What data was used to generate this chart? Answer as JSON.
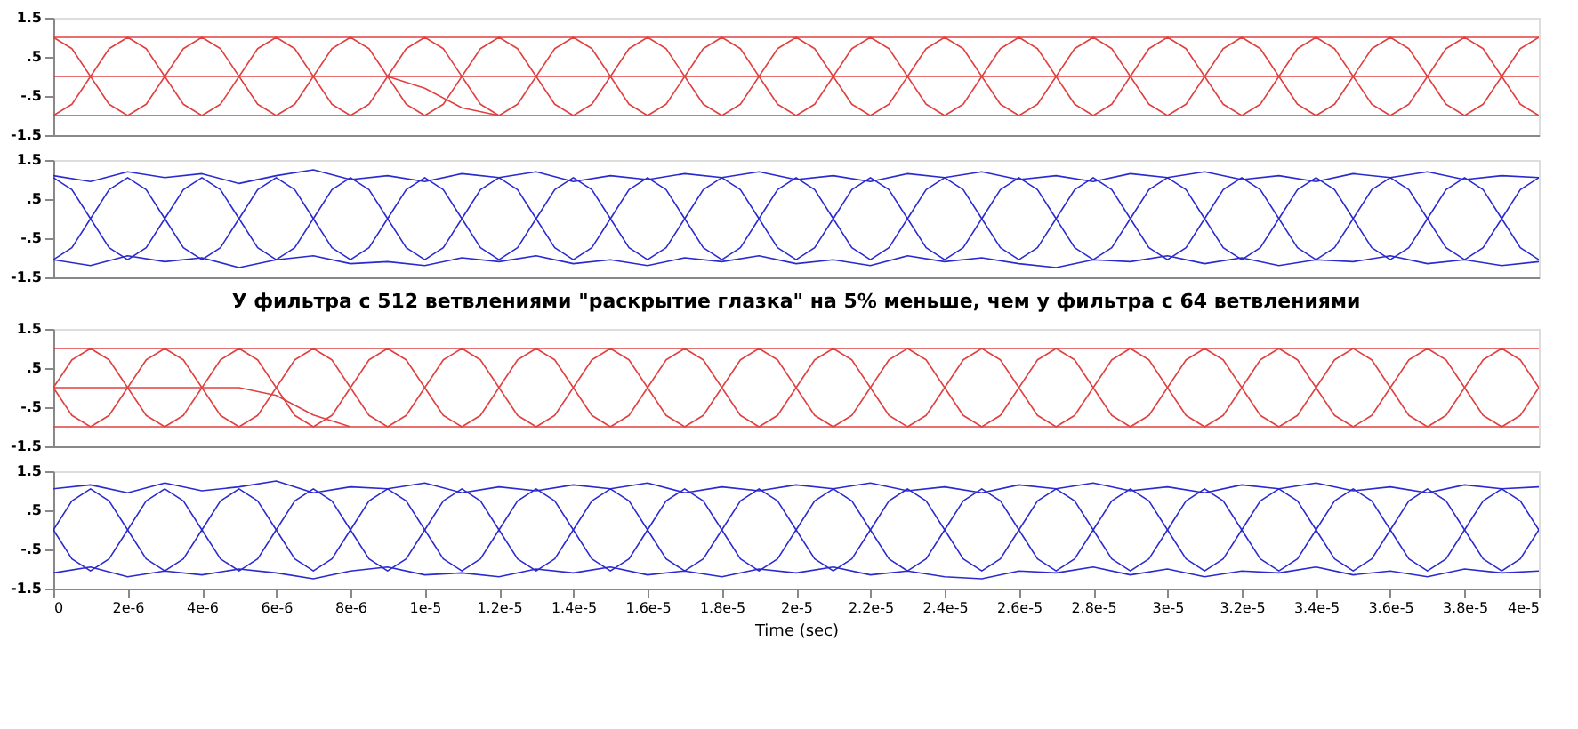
{
  "chart_data": [
    {
      "type": "line",
      "xlim": [
        0,
        4e-05
      ],
      "ylim": [
        -1.5,
        1.5
      ],
      "tick_labels": "y",
      "yticks": [
        {
          "value": 1.5,
          "label": "1.5"
        },
        {
          "value": 0.5,
          "label": ".5"
        },
        {
          "value": -0.5,
          "label": "-.5"
        },
        {
          "value": -1.5,
          "label": "-1.5"
        }
      ],
      "x": [
        0,
        5e-07,
        1e-06,
        1.5e-06,
        2e-06,
        2.5e-06,
        3e-06,
        3.5e-06,
        4e-06,
        4.5e-06,
        5e-06,
        5.5e-06,
        6e-06,
        6.5e-06,
        7e-06,
        7.5e-06,
        8e-06,
        8.5e-06,
        9e-06,
        9.5e-06,
        1e-05,
        1.05e-05,
        1.1e-05,
        1.15e-05,
        1.2e-05,
        1.25e-05,
        1.3e-05,
        1.35e-05,
        1.4e-05,
        1.45e-05,
        1.5e-05,
        1.55e-05,
        1.6e-05,
        1.65e-05,
        1.7e-05,
        1.75e-05,
        1.8e-05,
        1.85e-05,
        1.9e-05,
        1.95e-05,
        2e-05,
        2.05e-05,
        2.1e-05,
        2.15e-05,
        2.2e-05,
        2.25e-05,
        2.3e-05,
        2.35e-05,
        2.4e-05,
        2.45e-05,
        2.5e-05,
        2.55e-05,
        2.6e-05,
        2.65e-05,
        2.7e-05,
        2.75e-05,
        2.8e-05,
        2.85e-05,
        2.9e-05,
        2.95e-05,
        3e-05,
        3.05e-05,
        3.1e-05,
        3.15e-05,
        3.2e-05,
        3.25e-05,
        3.3e-05,
        3.35e-05,
        3.4e-05,
        3.45e-05,
        3.5e-05,
        3.55e-05,
        3.6e-05,
        3.65e-05,
        3.7e-05,
        3.75e-05,
        3.8e-05,
        3.85e-05,
        3.9e-05,
        3.95e-05,
        4e-05
      ],
      "series": [
        {
          "color": "#e04040",
          "values": [
            -1,
            -0.71,
            0,
            0.71,
            1,
            0.71,
            0,
            -0.71,
            -1,
            -0.71,
            0,
            0.71,
            1,
            0.71,
            0,
            -0.71,
            -1,
            -0.71,
            0,
            0.71,
            1,
            0.71,
            0,
            -0.71,
            -1,
            -0.71,
            0,
            0.71,
            1,
            0.71,
            0,
            -0.71,
            -1,
            -0.71,
            0,
            0.71,
            1,
            0.71,
            0,
            -0.71,
            -1,
            -0.71,
            0,
            0.71,
            1,
            0.71,
            0,
            -0.71,
            -1,
            -0.71,
            0,
            0.71,
            1,
            0.71,
            0,
            -0.71,
            -1,
            -0.71,
            0,
            0.71,
            1,
            0.71,
            0,
            -0.71,
            -1,
            -0.71,
            0,
            0.71,
            1,
            0.71,
            0,
            -0.71,
            -1,
            -0.71,
            0,
            0.71,
            1,
            0.71,
            0,
            -0.71,
            -1
          ]
        },
        {
          "color": "#e04040",
          "values": [
            1,
            0.71,
            0,
            -0.71,
            -1,
            -0.71,
            0,
            0.71,
            1,
            0.71,
            0,
            -0.71,
            -1,
            -0.71,
            0,
            0.71,
            1,
            0.71,
            0,
            -0.71,
            -1,
            -0.71,
            0,
            0.71,
            1,
            0.71,
            0,
            -0.71,
            -1,
            -0.71,
            0,
            0.71,
            1,
            0.71,
            0,
            -0.71,
            -1,
            -0.71,
            0,
            0.71,
            1,
            0.71,
            0,
            -0.71,
            -1,
            -0.71,
            0,
            0.71,
            1,
            0.71,
            0,
            -0.71,
            -1,
            -0.71,
            0,
            0.71,
            1,
            0.71,
            0,
            -0.71,
            -1,
            -0.71,
            0,
            0.71,
            1,
            0.71,
            0,
            -0.71,
            -1,
            -0.71,
            0,
            0.71,
            1,
            0.71,
            0,
            -0.71,
            -1,
            -0.71,
            0,
            0.71,
            1
          ]
        },
        {
          "color": "#e04040",
          "x": [
            0,
            4e-05
          ],
          "values": [
            1,
            1
          ]
        },
        {
          "color": "#e04040",
          "x": [
            0,
            4e-05
          ],
          "values": [
            0,
            0
          ]
        },
        {
          "color": "#e04040",
          "x": [
            0,
            4e-05
          ],
          "values": [
            -1,
            -1
          ]
        },
        {
          "color": "#e04040",
          "x": [
            9e-06,
            1e-05,
            1.1e-05,
            1.2e-05
          ],
          "values": [
            0,
            -0.3,
            -0.8,
            -1
          ]
        }
      ]
    },
    {
      "type": "line",
      "xlim": [
        0,
        4e-05
      ],
      "ylim": [
        -1.5,
        1.5
      ],
      "tick_labels": "y",
      "yticks": [
        {
          "value": 1.5,
          "label": "1.5"
        },
        {
          "value": 0.5,
          "label": ".5"
        },
        {
          "value": -0.5,
          "label": "-.5"
        },
        {
          "value": -1.5,
          "label": "-1.5"
        }
      ],
      "annotations": [
        "У фильтра с 512 ветвлениями \"раскрытие глазка\" на 5% меньше, чем у фильтра с 64 ветвлениями"
      ],
      "x": [
        0,
        5e-07,
        1e-06,
        1.5e-06,
        2e-06,
        2.5e-06,
        3e-06,
        3.5e-06,
        4e-06,
        4.5e-06,
        5e-06,
        5.5e-06,
        6e-06,
        6.5e-06,
        7e-06,
        7.5e-06,
        8e-06,
        8.5e-06,
        9e-06,
        9.5e-06,
        1e-05,
        1.05e-05,
        1.1e-05,
        1.15e-05,
        1.2e-05,
        1.25e-05,
        1.3e-05,
        1.35e-05,
        1.4e-05,
        1.45e-05,
        1.5e-05,
        1.55e-05,
        1.6e-05,
        1.65e-05,
        1.7e-05,
        1.75e-05,
        1.8e-05,
        1.85e-05,
        1.9e-05,
        1.95e-05,
        2e-05,
        2.05e-05,
        2.1e-05,
        2.15e-05,
        2.2e-05,
        2.25e-05,
        2.3e-05,
        2.35e-05,
        2.4e-05,
        2.45e-05,
        2.5e-05,
        2.55e-05,
        2.6e-05,
        2.65e-05,
        2.7e-05,
        2.75e-05,
        2.8e-05,
        2.85e-05,
        2.9e-05,
        2.95e-05,
        3e-05,
        3.05e-05,
        3.1e-05,
        3.15e-05,
        3.2e-05,
        3.25e-05,
        3.3e-05,
        3.35e-05,
        3.4e-05,
        3.45e-05,
        3.5e-05,
        3.55e-05,
        3.6e-05,
        3.65e-05,
        3.7e-05,
        3.75e-05,
        3.8e-05,
        3.85e-05,
        3.9e-05,
        3.95e-05,
        4e-05
      ],
      "series": [
        {
          "color": "#2a2ad0",
          "values": [
            -1.05,
            -0.74,
            0,
            0.74,
            1.05,
            0.74,
            0,
            -0.74,
            -1.05,
            -0.74,
            0,
            0.74,
            1.05,
            0.74,
            0,
            -0.74,
            -1.05,
            -0.74,
            0,
            0.74,
            1.05,
            0.74,
            0,
            -0.74,
            -1.05,
            -0.74,
            0,
            0.74,
            1.05,
            0.74,
            0,
            -0.74,
            -1.05,
            -0.74,
            0,
            0.74,
            1.05,
            0.74,
            0,
            -0.74,
            -1.05,
            -0.74,
            0,
            0.74,
            1.05,
            0.74,
            0,
            -0.74,
            -1.05,
            -0.74,
            0,
            0.74,
            1.05,
            0.74,
            0,
            -0.74,
            -1.05,
            -0.74,
            0,
            0.74,
            1.05,
            0.74,
            0,
            -0.74,
            -1.05,
            -0.74,
            0,
            0.74,
            1.05,
            0.74,
            0,
            -0.74,
            -1.05,
            -0.74,
            0,
            0.74,
            1.05,
            0.74,
            0,
            -0.74,
            -1.05
          ]
        },
        {
          "color": "#2a2ad0",
          "values": [
            1.05,
            0.74,
            0,
            -0.74,
            -1.05,
            -0.74,
            0,
            0.74,
            1.05,
            0.74,
            0,
            -0.74,
            -1.05,
            -0.74,
            0,
            0.74,
            1.05,
            0.74,
            0,
            -0.74,
            -1.05,
            -0.74,
            0,
            0.74,
            1.05,
            0.74,
            0,
            -0.74,
            -1.05,
            -0.74,
            0,
            0.74,
            1.05,
            0.74,
            0,
            -0.74,
            -1.05,
            -0.74,
            0,
            0.74,
            1.05,
            0.74,
            0,
            -0.74,
            -1.05,
            -0.74,
            0,
            0.74,
            1.05,
            0.74,
            0,
            -0.74,
            -1.05,
            -0.74,
            0,
            0.74,
            1.05,
            0.74,
            0,
            -0.74,
            -1.05,
            -0.74,
            0,
            0.74,
            1.05,
            0.74,
            0,
            -0.74,
            -1.05,
            -0.74,
            0,
            0.74,
            1.05,
            0.74,
            0,
            -0.74,
            -1.05,
            -0.74,
            0,
            0.74,
            1.05
          ]
        },
        {
          "color": "#2a2ad0",
          "x": [
            0,
            1e-06,
            2e-06,
            3e-06,
            4e-06,
            5e-06,
            6e-06,
            7e-06,
            8e-06,
            9e-06,
            1e-05,
            1.1e-05,
            1.2e-05,
            1.3e-05,
            1.4e-05,
            1.5e-05,
            1.6e-05,
            1.7e-05,
            1.8e-05,
            1.9e-05,
            2e-05,
            2.1e-05,
            2.2e-05,
            2.3e-05,
            2.4e-05,
            2.5e-05,
            2.6e-05,
            2.7e-05,
            2.8e-05,
            2.9e-05,
            3e-05,
            3.1e-05,
            3.2e-05,
            3.3e-05,
            3.4e-05,
            3.5e-05,
            3.6e-05,
            3.7e-05,
            3.8e-05,
            3.9e-05,
            4e-05
          ],
          "values": [
            1.1,
            0.95,
            1.2,
            1.05,
            1.15,
            0.9,
            1.1,
            1.25,
            1.0,
            1.1,
            0.95,
            1.15,
            1.05,
            1.2,
            0.95,
            1.1,
            1.0,
            1.15,
            1.05,
            1.2,
            1.0,
            1.1,
            0.95,
            1.15,
            1.05,
            1.2,
            1.0,
            1.1,
            0.95,
            1.15,
            1.05,
            1.2,
            1.0,
            1.1,
            0.95,
            1.15,
            1.05,
            1.2,
            1.0,
            1.1,
            1.05
          ]
        },
        {
          "color": "#2a2ad0",
          "x": [
            0,
            1e-06,
            2e-06,
            3e-06,
            4e-06,
            5e-06,
            6e-06,
            7e-06,
            8e-06,
            9e-06,
            1e-05,
            1.1e-05,
            1.2e-05,
            1.3e-05,
            1.4e-05,
            1.5e-05,
            1.6e-05,
            1.7e-05,
            1.8e-05,
            1.9e-05,
            2e-05,
            2.1e-05,
            2.2e-05,
            2.3e-05,
            2.4e-05,
            2.5e-05,
            2.6e-05,
            2.7e-05,
            2.8e-05,
            2.9e-05,
            3e-05,
            3.1e-05,
            3.2e-05,
            3.3e-05,
            3.4e-05,
            3.5e-05,
            3.6e-05,
            3.7e-05,
            3.8e-05,
            3.9e-05,
            4e-05
          ],
          "values": [
            -1.05,
            -1.2,
            -0.95,
            -1.1,
            -1.0,
            -1.25,
            -1.05,
            -0.95,
            -1.15,
            -1.1,
            -1.2,
            -1.0,
            -1.1,
            -0.95,
            -1.15,
            -1.05,
            -1.2,
            -1.0,
            -1.1,
            -0.95,
            -1.15,
            -1.05,
            -1.2,
            -0.95,
            -1.1,
            -1.0,
            -1.15,
            -1.25,
            -1.05,
            -1.1,
            -0.95,
            -1.15,
            -1.0,
            -1.2,
            -1.05,
            -1.1,
            -0.95,
            -1.15,
            -1.05,
            -1.2,
            -1.1
          ]
        }
      ]
    },
    {
      "type": "line",
      "xlim": [
        0,
        4e-05
      ],
      "ylim": [
        -1.5,
        1.5
      ],
      "tick_labels": "y",
      "yticks": [
        {
          "value": 1.5,
          "label": "1.5"
        },
        {
          "value": 0.5,
          "label": ".5"
        },
        {
          "value": -0.5,
          "label": "-.5"
        },
        {
          "value": -1.5,
          "label": "-1.5"
        }
      ],
      "x": [
        0,
        5e-07,
        1e-06,
        1.5e-06,
        2e-06,
        2.5e-06,
        3e-06,
        3.5e-06,
        4e-06,
        4.5e-06,
        5e-06,
        5.5e-06,
        6e-06,
        6.5e-06,
        7e-06,
        7.5e-06,
        8e-06,
        8.5e-06,
        9e-06,
        9.5e-06,
        1e-05,
        1.05e-05,
        1.1e-05,
        1.15e-05,
        1.2e-05,
        1.25e-05,
        1.3e-05,
        1.35e-05,
        1.4e-05,
        1.45e-05,
        1.5e-05,
        1.55e-05,
        1.6e-05,
        1.65e-05,
        1.7e-05,
        1.75e-05,
        1.8e-05,
        1.85e-05,
        1.9e-05,
        1.95e-05,
        2e-05,
        2.05e-05,
        2.1e-05,
        2.15e-05,
        2.2e-05,
        2.25e-05,
        2.3e-05,
        2.35e-05,
        2.4e-05,
        2.45e-05,
        2.5e-05,
        2.55e-05,
        2.6e-05,
        2.65e-05,
        2.7e-05,
        2.75e-05,
        2.8e-05,
        2.85e-05,
        2.9e-05,
        2.95e-05,
        3e-05,
        3.05e-05,
        3.1e-05,
        3.15e-05,
        3.2e-05,
        3.25e-05,
        3.3e-05,
        3.35e-05,
        3.4e-05,
        3.45e-05,
        3.5e-05,
        3.55e-05,
        3.6e-05,
        3.65e-05,
        3.7e-05,
        3.75e-05,
        3.8e-05,
        3.85e-05,
        3.9e-05,
        3.95e-05,
        4e-05
      ],
      "series": [
        {
          "color": "#e04040",
          "values": [
            0,
            0.71,
            1,
            0.71,
            0,
            -0.71,
            -1,
            -0.71,
            0,
            0.71,
            1,
            0.71,
            0,
            -0.71,
            -1,
            -0.71,
            0,
            0.71,
            1,
            0.71,
            0,
            -0.71,
            -1,
            -0.71,
            0,
            0.71,
            1,
            0.71,
            0,
            -0.71,
            -1,
            -0.71,
            0,
            0.71,
            1,
            0.71,
            0,
            -0.71,
            -1,
            -0.71,
            0,
            0.71,
            1,
            0.71,
            0,
            -0.71,
            -1,
            -0.71,
            0,
            0.71,
            1,
            0.71,
            0,
            -0.71,
            -1,
            -0.71,
            0,
            0.71,
            1,
            0.71,
            0,
            -0.71,
            -1,
            -0.71,
            0,
            0.71,
            1,
            0.71,
            0,
            -0.71,
            -1,
            -0.71,
            0,
            0.71,
            1,
            0.71,
            0,
            -0.71,
            -1,
            -0.71,
            0
          ]
        },
        {
          "color": "#e04040",
          "values": [
            0,
            -0.71,
            -1,
            -0.71,
            0,
            0.71,
            1,
            0.71,
            0,
            -0.71,
            -1,
            -0.71,
            0,
            0.71,
            1,
            0.71,
            0,
            -0.71,
            -1,
            -0.71,
            0,
            0.71,
            1,
            0.71,
            0,
            -0.71,
            -1,
            -0.71,
            0,
            0.71,
            1,
            0.71,
            0,
            -0.71,
            -1,
            -0.71,
            0,
            0.71,
            1,
            0.71,
            0,
            -0.71,
            -1,
            -0.71,
            0,
            0.71,
            1,
            0.71,
            0,
            -0.71,
            -1,
            -0.71,
            0,
            0.71,
            1,
            0.71,
            0,
            -0.71,
            -1,
            -0.71,
            0,
            0.71,
            1,
            0.71,
            0,
            -0.71,
            -1,
            -0.71,
            0,
            0.71,
            1,
            0.71,
            0,
            -0.71,
            -1,
            -0.71,
            0,
            0.71,
            1,
            0.71,
            0
          ]
        },
        {
          "color": "#e04040",
          "x": [
            0,
            4e-05
          ],
          "values": [
            1,
            1
          ]
        },
        {
          "color": "#e04040",
          "x": [
            0,
            4e-05
          ],
          "values": [
            -1,
            -1
          ]
        },
        {
          "color": "#e04040",
          "x": [
            0,
            5e-06,
            6e-06,
            7e-06,
            8e-06
          ],
          "values": [
            0,
            0,
            -0.2,
            -0.7,
            -1
          ]
        }
      ]
    },
    {
      "type": "line",
      "xlim": [
        0,
        4e-05
      ],
      "ylim": [
        -1.5,
        1.5
      ],
      "xlabel": "Time (sec)",
      "yticks": [
        {
          "value": 1.5,
          "label": "1.5"
        },
        {
          "value": 0.5,
          "label": ".5"
        },
        {
          "value": -0.5,
          "label": "-.5"
        },
        {
          "value": -1.5,
          "label": "-1.5"
        }
      ],
      "xticks": [
        {
          "value": 0,
          "label": "0"
        },
        {
          "value": 2e-06,
          "label": "2e-6"
        },
        {
          "value": 4e-06,
          "label": "4e-6"
        },
        {
          "value": 6e-06,
          "label": "6e-6"
        },
        {
          "value": 8e-06,
          "label": "8e-6"
        },
        {
          "value": 1e-05,
          "label": "1e-5"
        },
        {
          "value": 1.2e-05,
          "label": "1.2e-5"
        },
        {
          "value": 1.4e-05,
          "label": "1.4e-5"
        },
        {
          "value": 1.6e-05,
          "label": "1.6e-5"
        },
        {
          "value": 1.8e-05,
          "label": "1.8e-5"
        },
        {
          "value": 2e-05,
          "label": "2e-5"
        },
        {
          "value": 2.2e-05,
          "label": "2.2e-5"
        },
        {
          "value": 2.4e-05,
          "label": "2.4e-5"
        },
        {
          "value": 2.6e-05,
          "label": "2.6e-5"
        },
        {
          "value": 2.8e-05,
          "label": "2.8e-5"
        },
        {
          "value": 3e-05,
          "label": "3e-5"
        },
        {
          "value": 3.2e-05,
          "label": "3.2e-5"
        },
        {
          "value": 3.4e-05,
          "label": "3.4e-5"
        },
        {
          "value": 3.6e-05,
          "label": "3.6e-5"
        },
        {
          "value": 3.8e-05,
          "label": "3.8e-5"
        },
        {
          "value": 4e-05,
          "label": "4e-5"
        }
      ],
      "x": [
        0,
        5e-07,
        1e-06,
        1.5e-06,
        2e-06,
        2.5e-06,
        3e-06,
        3.5e-06,
        4e-06,
        4.5e-06,
        5e-06,
        5.5e-06,
        6e-06,
        6.5e-06,
        7e-06,
        7.5e-06,
        8e-06,
        8.5e-06,
        9e-06,
        9.5e-06,
        1e-05,
        1.05e-05,
        1.1e-05,
        1.15e-05,
        1.2e-05,
        1.25e-05,
        1.3e-05,
        1.35e-05,
        1.4e-05,
        1.45e-05,
        1.5e-05,
        1.55e-05,
        1.6e-05,
        1.65e-05,
        1.7e-05,
        1.75e-05,
        1.8e-05,
        1.85e-05,
        1.9e-05,
        1.95e-05,
        2e-05,
        2.05e-05,
        2.1e-05,
        2.15e-05,
        2.2e-05,
        2.25e-05,
        2.3e-05,
        2.35e-05,
        2.4e-05,
        2.45e-05,
        2.5e-05,
        2.55e-05,
        2.6e-05,
        2.65e-05,
        2.7e-05,
        2.75e-05,
        2.8e-05,
        2.85e-05,
        2.9e-05,
        2.95e-05,
        3e-05,
        3.05e-05,
        3.1e-05,
        3.15e-05,
        3.2e-05,
        3.25e-05,
        3.3e-05,
        3.35e-05,
        3.4e-05,
        3.45e-05,
        3.5e-05,
        3.55e-05,
        3.6e-05,
        3.65e-05,
        3.7e-05,
        3.75e-05,
        3.8e-05,
        3.85e-05,
        3.9e-05,
        3.95e-05,
        4e-05
      ],
      "series": [
        {
          "color": "#2a2ad0",
          "values": [
            0,
            0.74,
            1.05,
            0.74,
            0,
            -0.74,
            -1.05,
            -0.74,
            0,
            0.74,
            1.05,
            0.74,
            0,
            -0.74,
            -1.05,
            -0.74,
            0,
            0.74,
            1.05,
            0.74,
            0,
            -0.74,
            -1.05,
            -0.74,
            0,
            0.74,
            1.05,
            0.74,
            0,
            -0.74,
            -1.05,
            -0.74,
            0,
            0.74,
            1.05,
            0.74,
            0,
            -0.74,
            -1.05,
            -0.74,
            0,
            0.74,
            1.05,
            0.74,
            0,
            -0.74,
            -1.05,
            -0.74,
            0,
            0.74,
            1.05,
            0.74,
            0,
            -0.74,
            -1.05,
            -0.74,
            0,
            0.74,
            1.05,
            0.74,
            0,
            -0.74,
            -1.05,
            -0.74,
            0,
            0.74,
            1.05,
            0.74,
            0,
            -0.74,
            -1.05,
            -0.74,
            0,
            0.74,
            1.05,
            0.74,
            0,
            -0.74,
            -1.05,
            -0.74,
            0
          ]
        },
        {
          "color": "#2a2ad0",
          "values": [
            0,
            -0.74,
            -1.05,
            -0.74,
            0,
            0.74,
            1.05,
            0.74,
            0,
            -0.74,
            -1.05,
            -0.74,
            0,
            0.74,
            1.05,
            0.74,
            0,
            -0.74,
            -1.05,
            -0.74,
            0,
            0.74,
            1.05,
            0.74,
            0,
            -0.74,
            -1.05,
            -0.74,
            0,
            0.74,
            1.05,
            0.74,
            0,
            -0.74,
            -1.05,
            -0.74,
            0,
            0.74,
            1.05,
            0.74,
            0,
            -0.74,
            -1.05,
            -0.74,
            0,
            0.74,
            1.05,
            0.74,
            0,
            -0.74,
            -1.05,
            -0.74,
            0,
            0.74,
            1.05,
            0.74,
            0,
            -0.74,
            -1.05,
            -0.74,
            0,
            0.74,
            1.05,
            0.74,
            0,
            -0.74,
            -1.05,
            -0.74,
            0,
            0.74,
            1.05,
            0.74,
            0,
            -0.74,
            -1.05,
            -0.74,
            0,
            0.74,
            1.05,
            0.74,
            0
          ]
        },
        {
          "color": "#2a2ad0",
          "x": [
            0,
            1e-06,
            2e-06,
            3e-06,
            4e-06,
            5e-06,
            6e-06,
            7e-06,
            8e-06,
            9e-06,
            1e-05,
            1.1e-05,
            1.2e-05,
            1.3e-05,
            1.4e-05,
            1.5e-05,
            1.6e-05,
            1.7e-05,
            1.8e-05,
            1.9e-05,
            2e-05,
            2.1e-05,
            2.2e-05,
            2.3e-05,
            2.4e-05,
            2.5e-05,
            2.6e-05,
            2.7e-05,
            2.8e-05,
            2.9e-05,
            3e-05,
            3.1e-05,
            3.2e-05,
            3.3e-05,
            3.4e-05,
            3.5e-05,
            3.6e-05,
            3.7e-05,
            3.8e-05,
            3.9e-05,
            4e-05
          ],
          "values": [
            1.05,
            1.15,
            0.95,
            1.2,
            1.0,
            1.1,
            1.25,
            0.95,
            1.1,
            1.05,
            1.2,
            0.95,
            1.1,
            1.0,
            1.15,
            1.05,
            1.2,
            0.95,
            1.1,
            1.0,
            1.15,
            1.05,
            1.2,
            1.0,
            1.1,
            0.95,
            1.15,
            1.05,
            1.2,
            1.0,
            1.1,
            0.95,
            1.15,
            1.05,
            1.2,
            1.0,
            1.1,
            0.95,
            1.15,
            1.05,
            1.1
          ]
        },
        {
          "color": "#2a2ad0",
          "x": [
            0,
            1e-06,
            2e-06,
            3e-06,
            4e-06,
            5e-06,
            6e-06,
            7e-06,
            8e-06,
            9e-06,
            1e-05,
            1.1e-05,
            1.2e-05,
            1.3e-05,
            1.4e-05,
            1.5e-05,
            1.6e-05,
            1.7e-05,
            1.8e-05,
            1.9e-05,
            2e-05,
            2.1e-05,
            2.2e-05,
            2.3e-05,
            2.4e-05,
            2.5e-05,
            2.6e-05,
            2.7e-05,
            2.8e-05,
            2.9e-05,
            3e-05,
            3.1e-05,
            3.2e-05,
            3.3e-05,
            3.4e-05,
            3.5e-05,
            3.6e-05,
            3.7e-05,
            3.8e-05,
            3.9e-05,
            4e-05
          ],
          "values": [
            -1.1,
            -0.95,
            -1.2,
            -1.05,
            -1.15,
            -1.0,
            -1.1,
            -1.25,
            -1.05,
            -0.95,
            -1.15,
            -1.1,
            -1.2,
            -1.0,
            -1.1,
            -0.95,
            -1.15,
            -1.05,
            -1.2,
            -1.0,
            -1.1,
            -0.95,
            -1.15,
            -1.05,
            -1.2,
            -1.25,
            -1.05,
            -1.1,
            -0.95,
            -1.15,
            -1.0,
            -1.2,
            -1.05,
            -1.1,
            -0.95,
            -1.15,
            -1.05,
            -1.2,
            -1.0,
            -1.1,
            -1.05
          ]
        }
      ]
    }
  ]
}
